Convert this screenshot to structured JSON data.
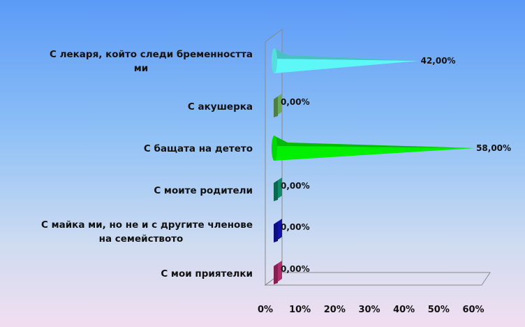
{
  "chart_data": {
    "type": "bar",
    "orientation": "horizontal",
    "style": "3d-cone",
    "title": "",
    "xlabel": "",
    "ylabel": "",
    "categories": [
      "С лекаря, който следи бременността ми",
      "С акушерка",
      "С бащата на детето",
      "С моите родители",
      "С майка ми, но не и с другите членове на семейството",
      "С мои приятелки"
    ],
    "category_lines": [
      [
        "С лекаря, който следи бременността",
        "ми"
      ],
      [
        "С акушерка"
      ],
      [
        "С бащата на детето"
      ],
      [
        "С моите родители"
      ],
      [
        "С майка ми, но не и с другите членове",
        "на семейството"
      ],
      [
        "С мои приятелки"
      ]
    ],
    "values": [
      42,
      0,
      58,
      0,
      0,
      0
    ],
    "data_labels": [
      "42,00%",
      "0,00%",
      "58,00%",
      "0,00%",
      "0,00%",
      "0,00%"
    ],
    "bar_colors": [
      "#5ef7f7",
      "#6aa85a",
      "#00f000",
      "#0f8a6a",
      "#1212a8",
      "#b02c6a"
    ],
    "xlim": [
      0,
      60
    ],
    "x_ticks": [
      "0%",
      "10%",
      "20%",
      "30%",
      "40%",
      "50%",
      "60%"
    ],
    "grid": false,
    "legend": "none"
  }
}
